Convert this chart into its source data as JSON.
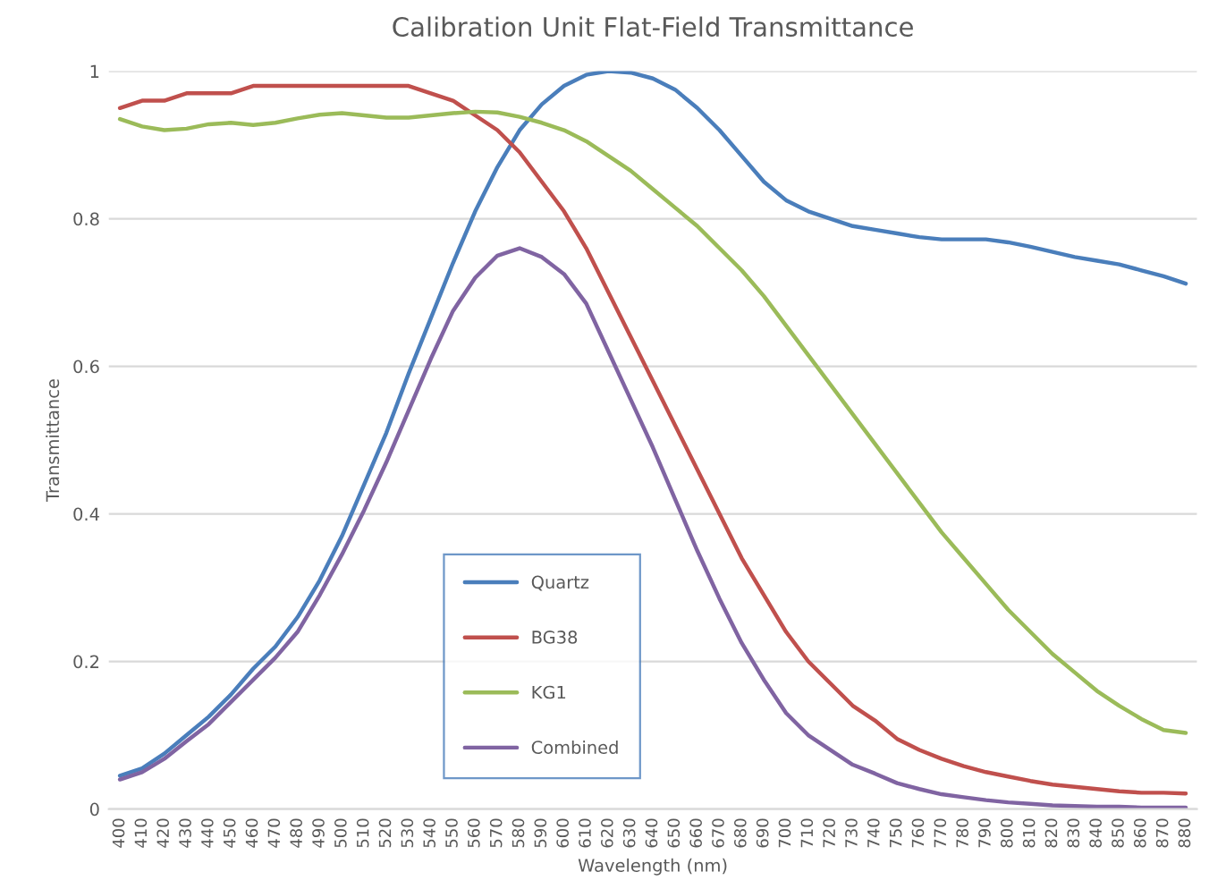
{
  "chart_data": {
    "type": "line",
    "title": "Calibration Unit Flat-Field Transmittance",
    "xlabel": "Wavelength (nm)",
    "ylabel": "Transmittance",
    "categories": [
      "400",
      "410",
      "420",
      "430",
      "440",
      "450",
      "460",
      "470",
      "480",
      "490",
      "500",
      "510",
      "520",
      "530",
      "540",
      "550",
      "560",
      "570",
      "580",
      "590",
      "600",
      "610",
      "620",
      "630",
      "640",
      "650",
      "660",
      "670",
      "680",
      "690",
      "700",
      "710",
      "720",
      "730",
      "740",
      "750",
      "760",
      "770",
      "780",
      "790",
      "800",
      "810",
      "820",
      "830",
      "840",
      "850",
      "860",
      "870",
      "880"
    ],
    "series": [
      {
        "name": "Quartz",
        "color": "#4a7ebb",
        "values": [
          0.045,
          0.055,
          0.075,
          0.1,
          0.125,
          0.155,
          0.19,
          0.22,
          0.26,
          0.31,
          0.37,
          0.44,
          0.51,
          0.59,
          0.665,
          0.74,
          0.81,
          0.87,
          0.92,
          0.955,
          0.98,
          0.995,
          1.0,
          0.998,
          0.99,
          0.975,
          0.95,
          0.92,
          0.885,
          0.85,
          0.825,
          0.81,
          0.8,
          0.79,
          0.785,
          0.78,
          0.775,
          0.772,
          0.772,
          0.772,
          0.768,
          0.762,
          0.755,
          0.748,
          0.743,
          0.738,
          0.73,
          0.722,
          0.712
        ]
      },
      {
        "name": "BG38",
        "color": "#c0504d",
        "values": [
          0.95,
          0.96,
          0.96,
          0.97,
          0.97,
          0.97,
          0.98,
          0.98,
          0.98,
          0.98,
          0.98,
          0.98,
          0.98,
          0.98,
          0.97,
          0.96,
          0.94,
          0.92,
          0.89,
          0.85,
          0.81,
          0.76,
          0.7,
          0.64,
          0.58,
          0.52,
          0.46,
          0.4,
          0.34,
          0.29,
          0.24,
          0.2,
          0.17,
          0.14,
          0.12,
          0.095,
          0.08,
          0.068,
          0.058,
          0.05,
          0.044,
          0.038,
          0.033,
          0.03,
          0.027,
          0.024,
          0.022,
          0.022,
          0.021
        ]
      },
      {
        "name": "KG1",
        "color": "#9bbb59",
        "values": [
          0.935,
          0.925,
          0.92,
          0.922,
          0.928,
          0.93,
          0.927,
          0.93,
          0.936,
          0.941,
          0.943,
          0.94,
          0.937,
          0.937,
          0.94,
          0.943,
          0.945,
          0.944,
          0.938,
          0.93,
          0.92,
          0.905,
          0.885,
          0.865,
          0.84,
          0.815,
          0.79,
          0.76,
          0.73,
          0.695,
          0.655,
          0.615,
          0.575,
          0.535,
          0.495,
          0.455,
          0.415,
          0.375,
          0.34,
          0.305,
          0.27,
          0.24,
          0.21,
          0.185,
          0.16,
          0.14,
          0.122,
          0.107,
          0.103
        ]
      },
      {
        "name": "Combined",
        "color": "#8064a2",
        "values": [
          0.04,
          0.05,
          0.068,
          0.092,
          0.115,
          0.145,
          0.175,
          0.205,
          0.24,
          0.29,
          0.345,
          0.405,
          0.47,
          0.54,
          0.61,
          0.675,
          0.72,
          0.75,
          0.76,
          0.748,
          0.725,
          0.685,
          0.62,
          0.555,
          0.49,
          0.42,
          0.35,
          0.285,
          0.225,
          0.175,
          0.13,
          0.1,
          0.08,
          0.06,
          0.048,
          0.035,
          0.027,
          0.02,
          0.016,
          0.012,
          0.009,
          0.007,
          0.005,
          0.004,
          0.003,
          0.003,
          0.002,
          0.002,
          0.002
        ]
      }
    ],
    "ylim": [
      0,
      1
    ],
    "yticks": [
      0,
      0.2,
      0.4,
      0.6,
      0.8,
      1
    ],
    "grid": "y",
    "legend": "bottom left",
    "marker": "none",
    "line_style": "solid"
  }
}
